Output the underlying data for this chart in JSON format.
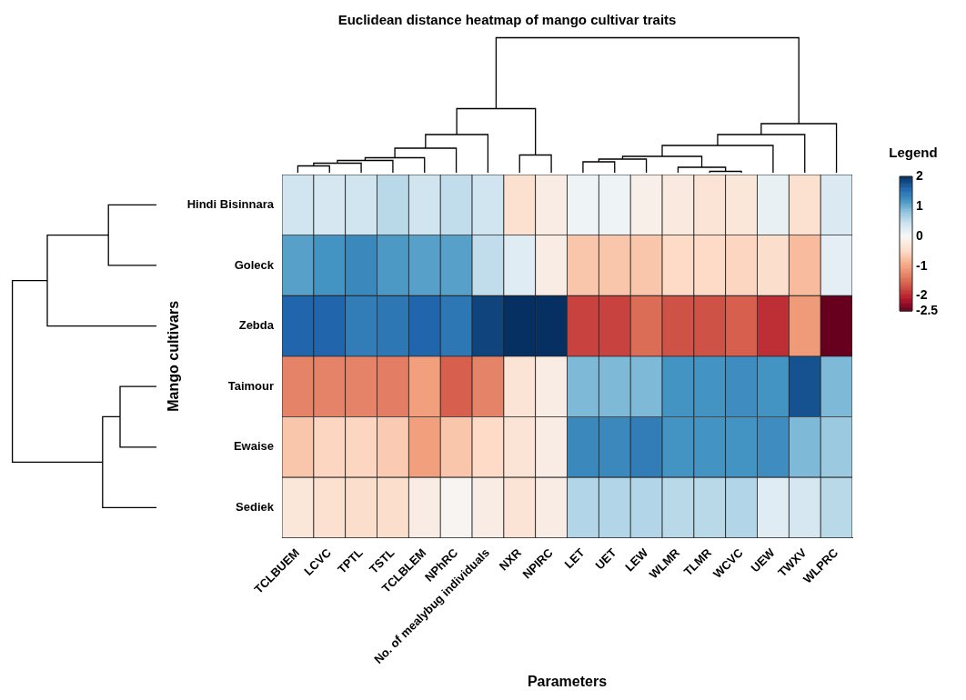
{
  "chart_data": {
    "type": "heatmap",
    "title": "Euclidean distance heatmap of mango cultivar traits",
    "xlabel": "Parameters",
    "ylabel": "Mango cultivars",
    "clabel": "Legend",
    "categories": [
      "TCLBUEM",
      "LCVC",
      "TPTL",
      "TSTL",
      "TCLBLEM",
      "NPhRC",
      "No. of mealybug individuals",
      "NXR",
      "NPIRC",
      "LET",
      "UET",
      "LEW",
      "WLMR",
      "TLMR",
      "WCVC",
      "UEW",
      "TWXV",
      "WLPRC"
    ],
    "y_categories": [
      "Hindi Bisinnara",
      "Goleck",
      "Zebda",
      "Taimour",
      "Ewaise",
      "Sediek"
    ],
    "cells": [
      [
        0.4,
        0.35,
        0.4,
        0.55,
        0.4,
        0.5,
        0.4,
        -0.4,
        -0.2,
        0.1,
        0.1,
        -0.15,
        -0.25,
        -0.35,
        -0.3,
        0.15,
        -0.4,
        0.3
      ],
      [
        1.1,
        1.2,
        1.3,
        1.15,
        1.1,
        1.1,
        0.5,
        0.25,
        -0.2,
        -0.7,
        -0.7,
        -0.7,
        -0.5,
        -0.5,
        -0.55,
        -0.45,
        -0.8,
        0.2
      ],
      [
        1.6,
        1.6,
        1.4,
        1.45,
        1.6,
        1.45,
        1.85,
        2,
        2,
        -1.8,
        -1.8,
        -1.5,
        -1.7,
        -1.7,
        -1.6,
        -1.95,
        -1.1,
        -2.5
      ],
      [
        -1.3,
        -1.3,
        -1.3,
        -1.35,
        -1.05,
        -1.6,
        -1.3,
        -0.35,
        -0.2,
        0.9,
        0.9,
        0.9,
        1.2,
        1.2,
        1.25,
        1.2,
        1.75,
        0.9
      ],
      [
        -0.7,
        -0.55,
        -0.55,
        -0.65,
        -1.05,
        -0.7,
        -0.5,
        -0.35,
        -0.2,
        1.3,
        1.3,
        1.4,
        1.2,
        1.2,
        1.2,
        1.25,
        0.9,
        0.75
      ],
      [
        -0.3,
        -0.4,
        -0.45,
        -0.45,
        -0.2,
        -0.05,
        -0.2,
        -0.35,
        -0.2,
        0.6,
        0.6,
        0.6,
        0.55,
        0.55,
        0.6,
        0.25,
        0.35,
        0.55
      ]
    ],
    "clim": [
      -2.5,
      2
    ],
    "cticks": [
      2,
      1,
      0,
      -1,
      -2,
      -2.5
    ]
  }
}
